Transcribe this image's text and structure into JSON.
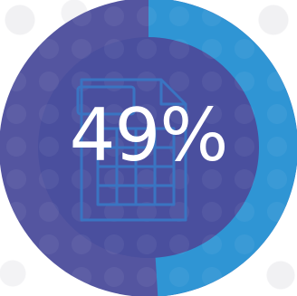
{
  "gauge": {
    "value_percent": 49,
    "label": "49%",
    "icon": "spreadsheet-document-icon",
    "colors": {
      "track": "#5455a0",
      "progress": "#2f95d4",
      "inner": "#4a4f9e",
      "icon_stroke": "#3a74c2",
      "text": "#ffffff"
    }
  }
}
